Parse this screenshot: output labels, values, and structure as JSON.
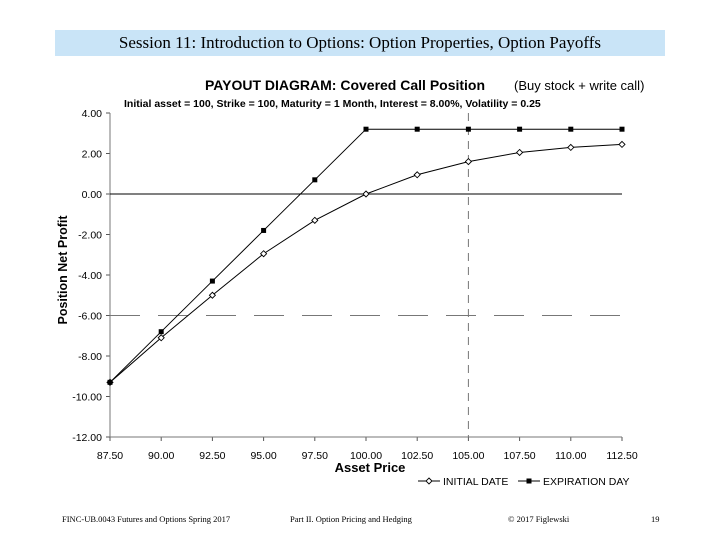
{
  "slide": {
    "title": "Session 11: Introduction to Options: Option Properties, Option Payoffs"
  },
  "chart_data": {
    "type": "line",
    "title_main": "PAYOUT DIAGRAM:  Covered Call Position",
    "title_paren": "(Buy stock + write call)",
    "subtitle": "Initial asset = 100,  Strike = 100,  Maturity = 1 Month,  Interest = 8.00%,  Volatility = 0.25",
    "xlabel": "Asset Price",
    "ylabel": "Position Net Profit",
    "ylim": [
      -12,
      4
    ],
    "yticks": [
      4,
      2,
      0,
      -2,
      -4,
      -6,
      -8,
      -10,
      -12
    ],
    "ytick_labels": [
      "4.00",
      "2.00",
      "0.00",
      "-2.00",
      "-4.00",
      "-6.00",
      "-8.00",
      "-10.00",
      "-12.00"
    ],
    "x_categories": [
      "87.50",
      "90.00",
      "92.50",
      "95.00",
      "97.50",
      "100.00",
      "102.50",
      "105.00",
      "107.50",
      "110.00",
      "112.50"
    ],
    "x_values": [
      87.5,
      90,
      92.5,
      95,
      97.5,
      100,
      102.5,
      105,
      107.5,
      110,
      112.5
    ],
    "reference_vertical_x": 105.0,
    "reference_horizontal_y": -6.0,
    "series": [
      {
        "name": "INITIAL DATE",
        "marker": "diamond-open",
        "color": "#000000",
        "values": [
          -9.3,
          -7.1,
          -5.0,
          -2.95,
          -1.3,
          0.0,
          0.95,
          1.6,
          2.05,
          2.3,
          2.45
        ]
      },
      {
        "name": "EXPIRATION DAY",
        "marker": "square-filled",
        "color": "#000000",
        "values": [
          -9.3,
          -6.8,
          -4.3,
          -1.8,
          0.7,
          3.2,
          3.2,
          3.2,
          3.2,
          3.2,
          3.2
        ]
      }
    ]
  },
  "footer": {
    "course": "FINC-UB.0043  Futures and Options  Spring 2017",
    "part": "Part II. Option Pricing and Hedging",
    "copyright": "© 2017 Figlewski",
    "page": "19"
  }
}
